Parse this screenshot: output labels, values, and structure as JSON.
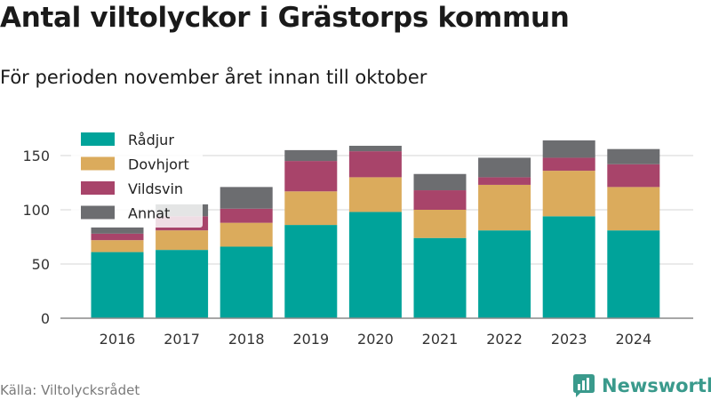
{
  "title": "Antal viltolyckor i Grästorps kommun",
  "subtitle": "För perioden november året innan till oktober",
  "source": "Källa: Viltolycksrådet",
  "brand": {
    "name": "Newsworthy",
    "logo_icon": "newsworthy-logo-icon"
  },
  "chart_data": {
    "type": "bar",
    "stacked": true,
    "categories": [
      "2016",
      "2017",
      "2018",
      "2019",
      "2020",
      "2021",
      "2022",
      "2023",
      "2024"
    ],
    "series": [
      {
        "name": "Rådjur",
        "color": "#00a39a",
        "values": [
          61,
          63,
          66,
          86,
          98,
          74,
          81,
          94,
          81
        ]
      },
      {
        "name": "Dovhjort",
        "color": "#dbab5c",
        "values": [
          11,
          18,
          22,
          31,
          32,
          26,
          42,
          42,
          40
        ]
      },
      {
        "name": "Vildsvin",
        "color": "#a8446a",
        "values": [
          6,
          13,
          13,
          28,
          24,
          18,
          7,
          12,
          21
        ]
      },
      {
        "name": "Annat",
        "color": "#6c6d70",
        "values": [
          6,
          11,
          20,
          10,
          5,
          15,
          18,
          16,
          14
        ]
      }
    ],
    "y_ticks": [
      0,
      50,
      100,
      150
    ],
    "ylim": [
      0,
      170
    ],
    "grid": true,
    "legend_position": "top-left"
  }
}
